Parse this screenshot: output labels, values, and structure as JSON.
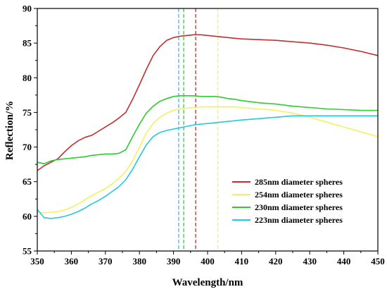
{
  "chart_data": {
    "type": "line",
    "title": "",
    "xlabel": "Wavelength/nm",
    "ylabel": "Reflection/%",
    "xlim": [
      350,
      450
    ],
    "ylim": [
      55,
      90
    ],
    "x_ticks": [
      "350",
      "360",
      "370",
      "380",
      "390",
      "400",
      "410",
      "420",
      "430",
      "440",
      "450"
    ],
    "y_ticks": [
      "55",
      "60",
      "65",
      "70",
      "75",
      "80",
      "85",
      "90"
    ],
    "legend_position": "bottom-right",
    "grid": false,
    "series": [
      {
        "name": "285nm diameter spheres",
        "color": "#c03030",
        "x": [
          350,
          352,
          354,
          356,
          358,
          360,
          362,
          364,
          366,
          368,
          370,
          372,
          374,
          376,
          378,
          380,
          382,
          384,
          386,
          388,
          390,
          392,
          394,
          396,
          398,
          400,
          402,
          404,
          406,
          408,
          410,
          415,
          420,
          425,
          430,
          435,
          440,
          445,
          450
        ],
        "y": [
          66.6,
          67.3,
          67.8,
          68.3,
          69.3,
          70.2,
          70.9,
          71.4,
          71.7,
          72.3,
          72.9,
          73.5,
          74.2,
          75.0,
          76.9,
          79.0,
          81.2,
          83.2,
          84.5,
          85.4,
          85.8,
          86.0,
          86.1,
          86.2,
          86.2,
          86.1,
          86.0,
          85.9,
          85.8,
          85.7,
          85.6,
          85.5,
          85.4,
          85.2,
          85.0,
          84.7,
          84.3,
          83.8,
          83.2
        ]
      },
      {
        "name": "254nm diameter spheres",
        "color": "#f5f060",
        "x": [
          350,
          352,
          354,
          356,
          358,
          360,
          362,
          364,
          366,
          368,
          370,
          372,
          374,
          376,
          378,
          380,
          382,
          384,
          386,
          388,
          390,
          392,
          394,
          396,
          398,
          400,
          402,
          404,
          406,
          408,
          410,
          415,
          420,
          425,
          430,
          435,
          440,
          445,
          450
        ],
        "y": [
          60.6,
          60.5,
          60.6,
          60.7,
          60.9,
          61.3,
          61.8,
          62.4,
          63.0,
          63.5,
          64.0,
          64.7,
          65.5,
          66.5,
          68.0,
          70.0,
          72.0,
          73.4,
          74.3,
          74.9,
          75.3,
          75.5,
          75.6,
          75.7,
          75.8,
          75.8,
          75.8,
          75.8,
          75.8,
          75.8,
          75.7,
          75.5,
          75.3,
          74.9,
          74.3,
          73.6,
          72.9,
          72.2,
          71.5
        ]
      },
      {
        "name": "230nm diameter spheres",
        "color": "#2ecc2e",
        "x": [
          350,
          352,
          354,
          356,
          358,
          360,
          362,
          364,
          366,
          368,
          370,
          372,
          374,
          376,
          378,
          380,
          382,
          384,
          386,
          388,
          390,
          392,
          394,
          396,
          398,
          400,
          402,
          404,
          406,
          408,
          410,
          415,
          420,
          425,
          430,
          435,
          440,
          445,
          450
        ],
        "y": [
          67.8,
          67.6,
          68.0,
          68.2,
          68.3,
          68.4,
          68.5,
          68.6,
          68.8,
          68.9,
          69.0,
          69.0,
          69.1,
          69.6,
          71.5,
          73.3,
          74.9,
          75.9,
          76.6,
          77.0,
          77.3,
          77.4,
          77.4,
          77.4,
          77.3,
          77.3,
          77.3,
          77.2,
          77.0,
          76.9,
          76.7,
          76.4,
          76.2,
          75.9,
          75.7,
          75.5,
          75.4,
          75.3,
          75.3
        ]
      },
      {
        "name": "223nm diameter spheres",
        "color": "#25c8e0",
        "x": [
          350,
          352,
          354,
          356,
          358,
          360,
          362,
          364,
          366,
          368,
          370,
          372,
          374,
          376,
          378,
          380,
          382,
          384,
          386,
          388,
          390,
          392,
          394,
          396,
          398,
          400,
          402,
          404,
          406,
          408,
          410,
          415,
          420,
          425,
          430,
          435,
          440,
          445,
          450
        ],
        "y": [
          61.0,
          59.8,
          59.7,
          59.8,
          60.0,
          60.3,
          60.7,
          61.2,
          61.8,
          62.3,
          62.9,
          63.6,
          64.3,
          65.3,
          66.8,
          68.6,
          70.3,
          71.5,
          72.1,
          72.4,
          72.6,
          72.8,
          73.0,
          73.2,
          73.3,
          73.4,
          73.5,
          73.6,
          73.7,
          73.8,
          73.9,
          74.1,
          74.3,
          74.5,
          74.5,
          74.5,
          74.5,
          74.5,
          74.5
        ]
      }
    ],
    "vertical_lines": [
      {
        "x": 391.5,
        "color": "#25c8e0"
      },
      {
        "x": 393,
        "color": "#2ecc2e"
      },
      {
        "x": 396.5,
        "color": "#c03030"
      },
      {
        "x": 403,
        "color": "#f5f060"
      }
    ]
  }
}
